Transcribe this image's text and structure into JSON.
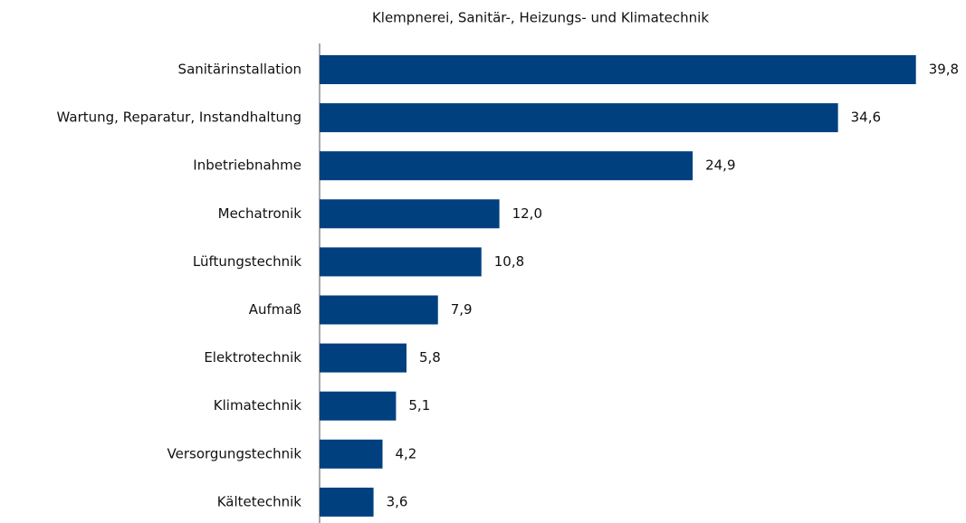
{
  "chart_data": {
    "type": "bar",
    "orientation": "horizontal",
    "title": "Klempnerei,  Sanitär-, Heizungs- und Klimatechnik",
    "categories": [
      "Sanitärinstallation",
      "Wartung, Reparatur, Instandhaltung",
      "Inbetriebnahme",
      "Mechatronik",
      "Lüftungstechnik",
      "Aufmaß",
      "Elektrotechnik",
      "Klimatechnik",
      "Versorgungstechnik",
      "Kältetechnik"
    ],
    "values": [
      39.8,
      34.6,
      24.9,
      12.0,
      10.8,
      7.9,
      5.8,
      5.1,
      4.2,
      3.6
    ],
    "value_labels": [
      "39,8",
      "34,6",
      "24,9",
      "12,0",
      "10,8",
      "7,9",
      "5,8",
      "5,1",
      "4,2",
      "3,6"
    ],
    "color": "#00407f",
    "xlim": [
      0,
      40
    ]
  }
}
